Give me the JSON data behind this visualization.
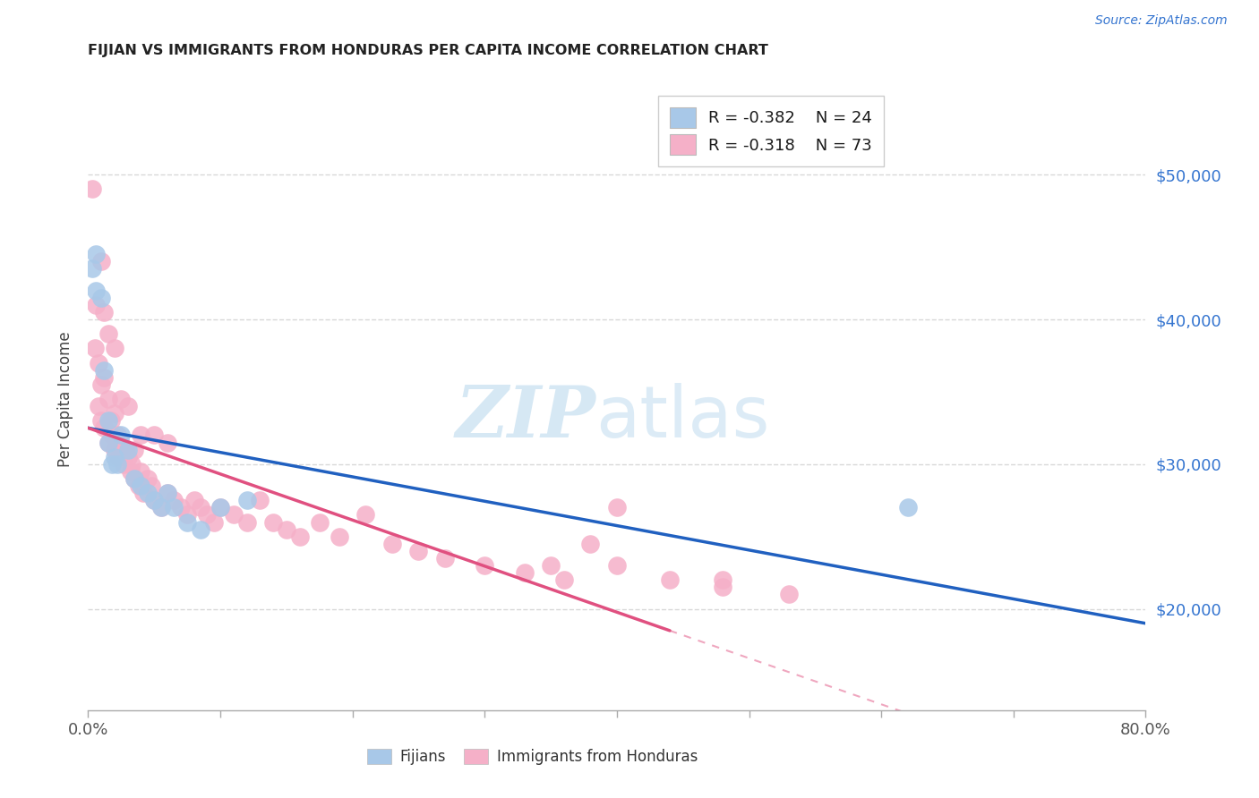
{
  "title": "FIJIAN VS IMMIGRANTS FROM HONDURAS PER CAPITA INCOME CORRELATION CHART",
  "source": "Source: ZipAtlas.com",
  "ylabel": "Per Capita Income",
  "ytick_labels": [
    "$20,000",
    "$30,000",
    "$40,000",
    "$50,000"
  ],
  "ytick_values": [
    20000,
    30000,
    40000,
    50000
  ],
  "xlim": [
    0.0,
    0.8
  ],
  "ylim": [
    13000,
    56000
  ],
  "watermark_zip": "ZIP",
  "watermark_atlas": "atlas",
  "legend_blue_r": "-0.382",
  "legend_blue_n": "24",
  "legend_pink_r": "-0.318",
  "legend_pink_n": "73",
  "fijian_color": "#a8c8e8",
  "honduras_color": "#f5b0c8",
  "fijian_line_color": "#2060c0",
  "honduras_line_color": "#e05080",
  "grid_color": "#d8d8d8",
  "title_color": "#222222",
  "right_label_color": "#3575d0",
  "xtick_positions": [
    0.0,
    0.1,
    0.2,
    0.3,
    0.4,
    0.5,
    0.6,
    0.7,
    0.8
  ],
  "fijian_x": [
    0.003,
    0.006,
    0.006,
    0.01,
    0.012,
    0.015,
    0.015,
    0.018,
    0.02,
    0.022,
    0.025,
    0.03,
    0.035,
    0.04,
    0.045,
    0.05,
    0.055,
    0.06,
    0.065,
    0.075,
    0.085,
    0.1,
    0.12,
    0.62
  ],
  "fijian_y": [
    43500,
    44500,
    42000,
    41500,
    36500,
    33000,
    31500,
    30000,
    30500,
    30000,
    32000,
    31000,
    29000,
    28500,
    28000,
    27500,
    27000,
    28000,
    27000,
    26000,
    25500,
    27000,
    27500,
    27000
  ],
  "honduras_x": [
    0.003,
    0.005,
    0.006,
    0.008,
    0.008,
    0.01,
    0.01,
    0.012,
    0.012,
    0.015,
    0.015,
    0.017,
    0.018,
    0.02,
    0.02,
    0.022,
    0.023,
    0.025,
    0.027,
    0.028,
    0.03,
    0.032,
    0.033,
    0.035,
    0.038,
    0.04,
    0.042,
    0.045,
    0.048,
    0.05,
    0.055,
    0.06,
    0.065,
    0.07,
    0.075,
    0.08,
    0.085,
    0.09,
    0.095,
    0.1,
    0.11,
    0.12,
    0.13,
    0.14,
    0.15,
    0.16,
    0.175,
    0.19,
    0.21,
    0.23,
    0.25,
    0.27,
    0.3,
    0.33,
    0.36,
    0.4,
    0.44,
    0.48,
    0.53,
    0.01,
    0.012,
    0.015,
    0.02,
    0.025,
    0.03,
    0.035,
    0.04,
    0.05,
    0.06,
    0.4,
    0.38,
    0.35,
    0.48
  ],
  "honduras_y": [
    49000,
    38000,
    41000,
    37000,
    34000,
    35500,
    33000,
    36000,
    32500,
    34500,
    31500,
    33000,
    32000,
    33500,
    31000,
    32000,
    30500,
    31500,
    30000,
    31000,
    30500,
    29500,
    30000,
    29000,
    28500,
    29500,
    28000,
    29000,
    28500,
    27500,
    27000,
    28000,
    27500,
    27000,
    26500,
    27500,
    27000,
    26500,
    26000,
    27000,
    26500,
    26000,
    27500,
    26000,
    25500,
    25000,
    26000,
    25000,
    26500,
    24500,
    24000,
    23500,
    23000,
    22500,
    22000,
    23000,
    22000,
    21500,
    21000,
    44000,
    40500,
    39000,
    38000,
    34500,
    34000,
    31000,
    32000,
    32000,
    31500,
    27000,
    24500,
    23000,
    22000
  ],
  "fijian_line_x0": 0.0,
  "fijian_line_y0": 32500,
  "fijian_line_x1": 0.8,
  "fijian_line_y1": 19000,
  "honduras_line_x0": 0.0,
  "honduras_line_y0": 32500,
  "honduras_line_x1": 0.44,
  "honduras_line_y1": 18500
}
